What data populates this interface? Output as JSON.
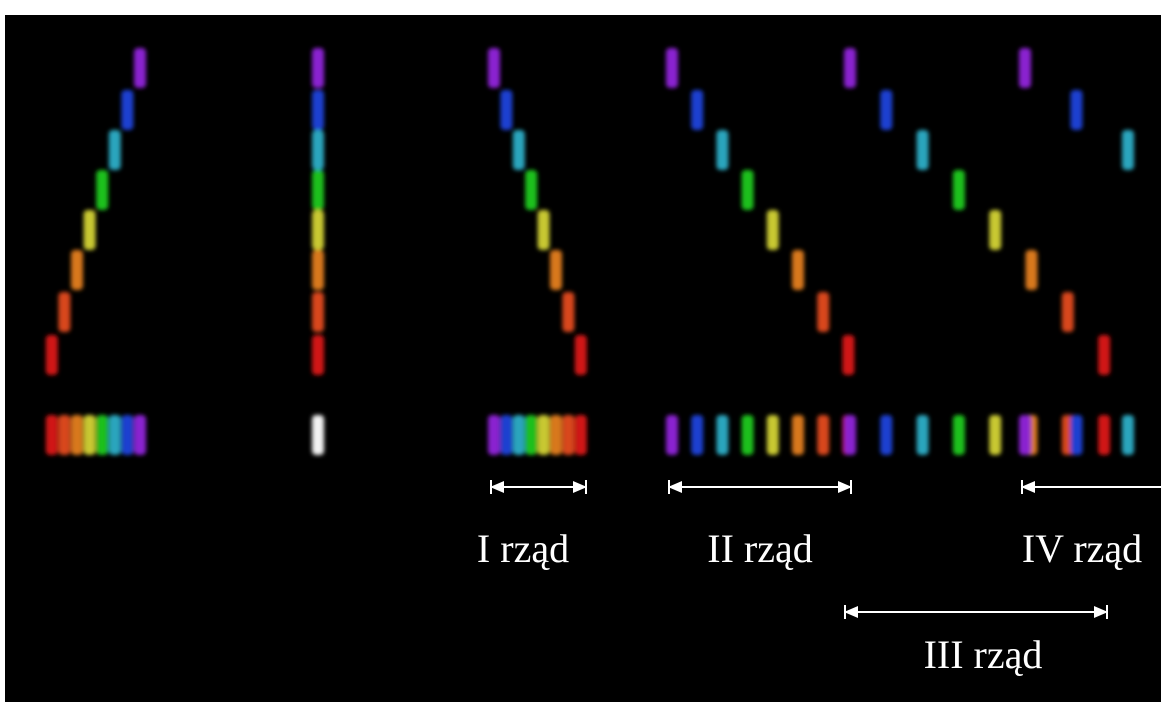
{
  "labels": {
    "order1": "I rząd",
    "order2": "II rząd",
    "order3": "III rząd",
    "order4": "IV rząd"
  }
}
